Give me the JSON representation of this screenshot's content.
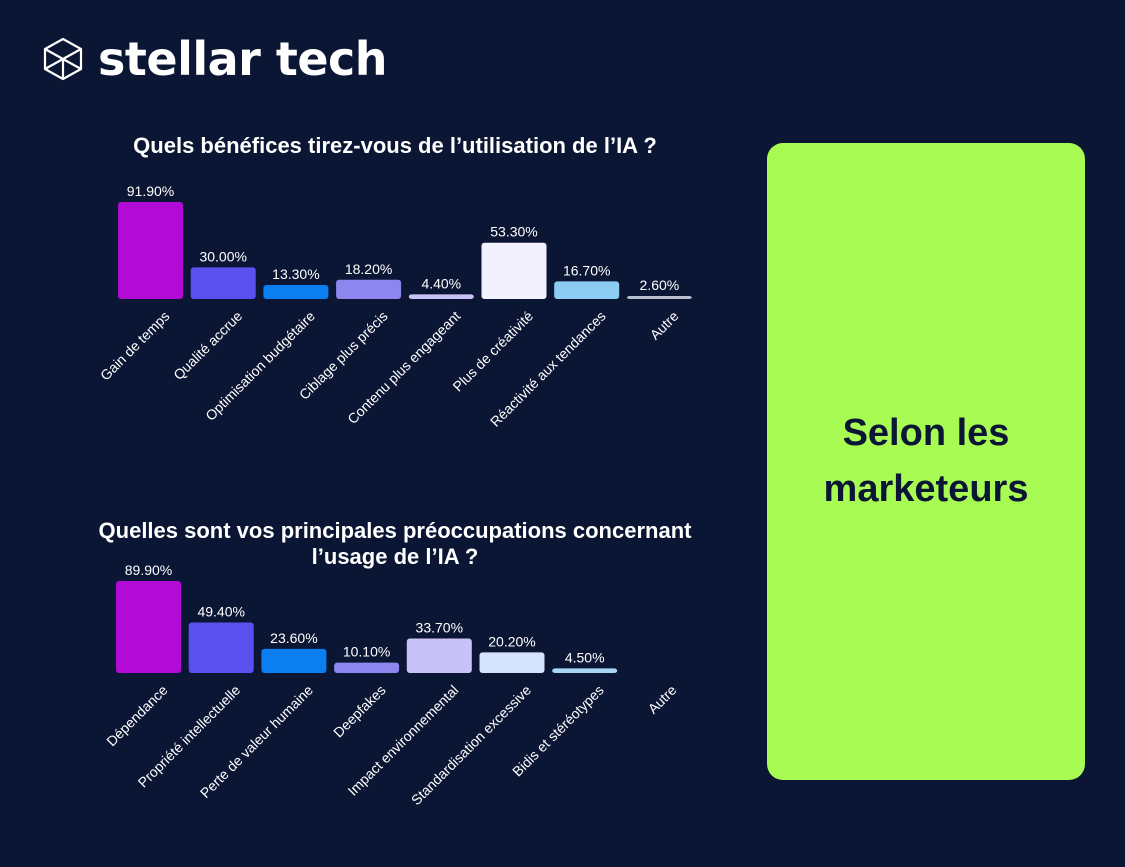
{
  "brand": {
    "name": "stellar tech",
    "logo_icon": "hexagon-cube-icon"
  },
  "panel": {
    "text": "Selon les marketeurs",
    "background": "#a7fb53"
  },
  "colors": {
    "background": "#0b1634",
    "text": "#ffffff"
  },
  "chart_data": [
    {
      "type": "bar",
      "title": "Quels bénéfices tirez-vous de l’utilisation de l’IA ?",
      "categories": [
        "Gain de temps",
        "Qualité accrue",
        "Optimisation budgétaire",
        "Ciblage plus précis",
        "Contenu plus engageant",
        "Plus de créativité",
        "Réactivité aux tendances",
        "Autre"
      ],
      "values": [
        91.9,
        30.0,
        13.3,
        18.2,
        4.4,
        53.3,
        16.7,
        2.6
      ],
      "labels": [
        "91.90%",
        "30.00%",
        "13.30%",
        "18.20%",
        "4.40%",
        "53.30%",
        "16.70%",
        "2.60%"
      ],
      "colors": [
        "#b30bd6",
        "#5b4ff0",
        "#0b7ff0",
        "#8e86ef",
        "#c9c2f7",
        "#f4f1ff",
        "#8ccbf2",
        "#b8bfcf"
      ],
      "ylim": [
        0,
        91.9
      ],
      "grid": false,
      "legend": "none"
    },
    {
      "type": "bar",
      "title": "Quelles sont vos principales préoccupations concernant l’usage de l’IA ?",
      "categories": [
        "Dépendance",
        "Propriété intellectuelle",
        "Perte de valeur humaine",
        "Deepfakes",
        "Impact environnemental",
        "Standardisation excessive",
        "Bidis et stéréotypes",
        "Autre"
      ],
      "values": [
        89.9,
        49.4,
        23.6,
        10.1,
        33.7,
        20.2,
        4.5,
        0
      ],
      "labels": [
        "89.90%",
        "49.40%",
        "23.60%",
        "10.10%",
        "33.70%",
        "20.20%",
        "4.50%",
        ""
      ],
      "colors": [
        "#b30bd6",
        "#5b4ff0",
        "#0b7ff0",
        "#8e86ef",
        "#c9c2f7",
        "#d3e3fb",
        "#a8d7f5",
        "#b8bfcf"
      ],
      "ylim": [
        0,
        89.9
      ],
      "grid": false,
      "legend": "none"
    }
  ]
}
